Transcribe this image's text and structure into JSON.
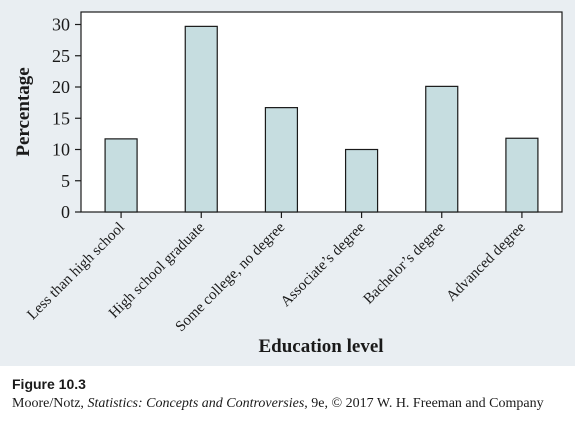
{
  "chart_data": {
    "type": "bar",
    "categories": [
      "Less than high school",
      "High school graduate",
      "Some college, no degree",
      "Associate’s degree",
      "Bachelor’s degree",
      "Advanced degree"
    ],
    "values": [
      11.7,
      29.7,
      16.7,
      10.0,
      20.1,
      11.8
    ],
    "title": "",
    "xlabel": "Education level",
    "ylabel": "Percentage",
    "ylim": [
      0,
      32
    ],
    "yticks": [
      0,
      5,
      10,
      15,
      20,
      25,
      30
    ],
    "grid": false,
    "colors": {
      "bar_fill": "#c6dde0",
      "bar_stroke": "#1a1a1a",
      "panel_background": "#e9eef2"
    }
  },
  "caption": {
    "label": "Figure 10.3",
    "credit_prefix": "Moore/Notz, ",
    "credit_title": "Statistics: Concepts and Controversies",
    "credit_suffix": ", 9e, © 2017 W. H. Freeman and Company"
  }
}
